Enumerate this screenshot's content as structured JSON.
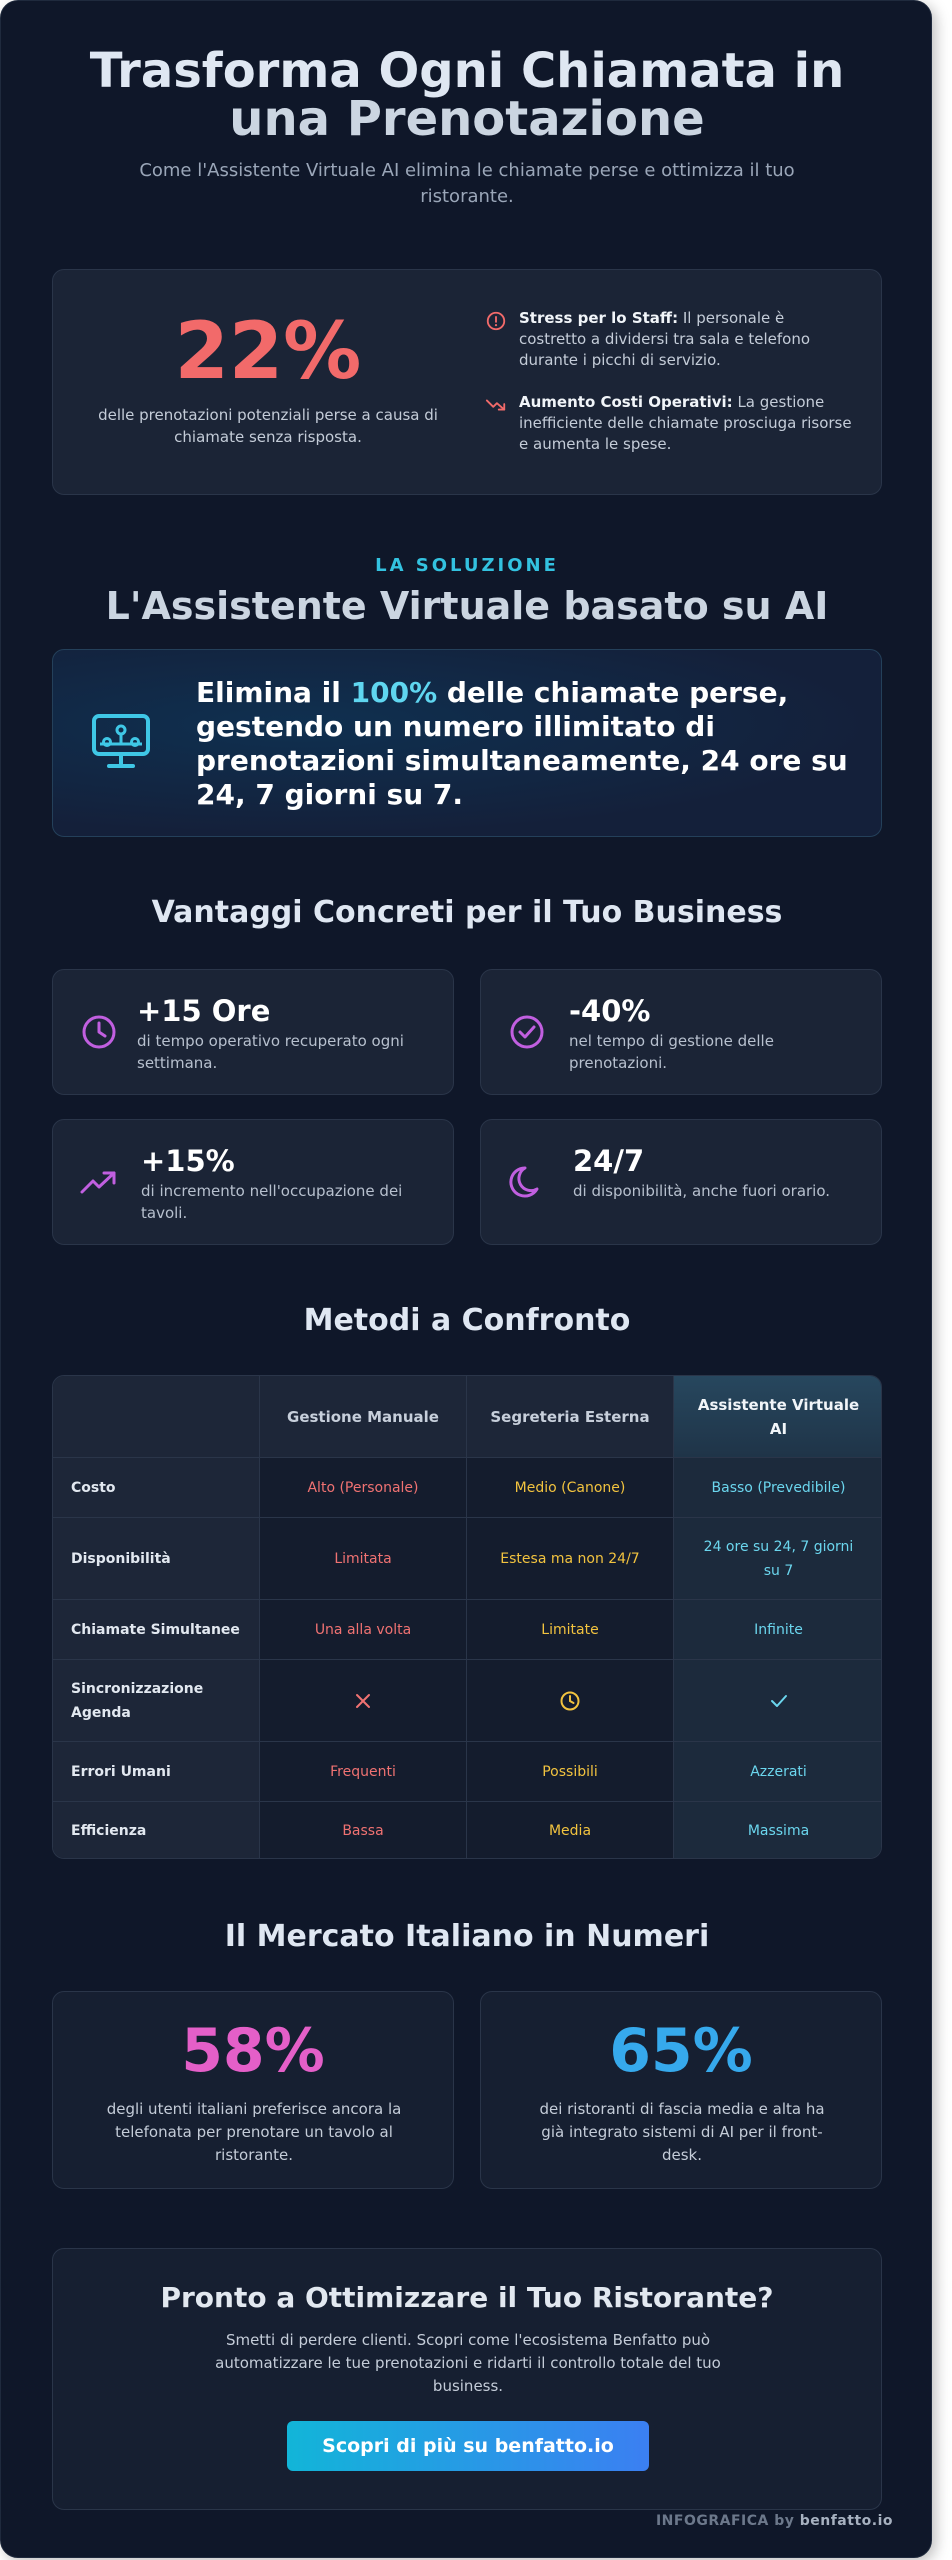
{
  "hero": {
    "title_line1": "Trasforma Ogni Chiamata in",
    "title_line2": "una Prenotazione",
    "subtitle": "Come l'Assistente Virtuale AI elimina le chiamate perse e ottimizza il tuo ristorante."
  },
  "problem": {
    "stat_value": "22%",
    "stat_caption": "delle prenotazioni potenziali perse a causa di chiamate senza risposta.",
    "issues": [
      {
        "icon": "alert-circle-icon",
        "title": "Stress per lo Staff:",
        "text": "Il personale è costretto a dividersi tra sala e telefono durante i picchi di servizio."
      },
      {
        "icon": "trending-down-icon",
        "title": "Aumento Costi Operativi:",
        "text": "La gestione inefficiente delle chiamate prosciuga risorse e aumenta le spese."
      }
    ]
  },
  "solution": {
    "eyebrow": "LA SOLUZIONE",
    "title": "L'Assistente Virtuale basato su AI",
    "icon": "monitor-network-icon",
    "text_pre": "Elimina il ",
    "text_highlight": "100%",
    "text_post": " delle chiamate perse, gestendo un numero illimitato di prenotazioni simultaneamente, 24 ore su 24, 7 giorni su 7."
  },
  "benefits": {
    "title": "Vantaggi Concreti per il Tuo Business",
    "items": [
      {
        "icon": "clock-icon",
        "value": "+15 Ore",
        "desc": "di tempo operativo recuperato ogni settimana."
      },
      {
        "icon": "check-circle-icon",
        "value": "-40%",
        "desc": "nel tempo di gestione delle prenotazioni."
      },
      {
        "icon": "trending-up-icon",
        "value": "+15%",
        "desc": "di incremento nell'occupazione dei tavoli."
      },
      {
        "icon": "moon-icon",
        "value": "24/7",
        "desc": "di disponibilità, anche fuori orario."
      }
    ]
  },
  "comparison": {
    "title": "Metodi a Confronto",
    "headers": [
      "",
      "Gestione Manuale",
      "Segreteria Esterna",
      "Assistente Virtuale AI"
    ],
    "rows": [
      {
        "label": "Costo",
        "manual": "Alto (Personale)",
        "external": "Medio (Canone)",
        "ai": "Basso (Prevedibile)"
      },
      {
        "label": "Disponibilità",
        "manual": "Limitata",
        "external": "Estesa ma non 24/7",
        "ai": "24 ore su 24, 7 giorni su 7"
      },
      {
        "label": "Chiamate Simultanee",
        "manual": "Una alla volta",
        "external": "Limitate",
        "ai": "Infinite"
      },
      {
        "label": "Sincronizzazione Agenda",
        "manual_icon": "x-icon",
        "external_icon": "clock-icon",
        "ai_icon": "check-icon"
      },
      {
        "label": "Errori Umani",
        "manual": "Frequenti",
        "external": "Possibili",
        "ai": "Azzerati"
      },
      {
        "label": "Efficienza",
        "manual": "Bassa",
        "external": "Media",
        "ai": "Massima"
      }
    ]
  },
  "market": {
    "title": "Il Mercato Italiano in Numeri",
    "items": [
      {
        "value": "58%",
        "color": "#e45fc8",
        "desc": "degli utenti italiani preferisce ancora la telefonata per prenotare un tavolo al ristorante."
      },
      {
        "value": "65%",
        "color": "#36a9ec",
        "desc": "dei ristoranti di fascia media e alta ha già integrato sistemi di AI per il front-desk."
      }
    ]
  },
  "cta": {
    "title": "Pronto a Ottimizzare il Tuo Ristorante?",
    "text": "Smetti di perdere clienti. Scopri come l'ecosistema Benfatto può automatizzare le tue prenotazioni e ridarti il controllo totale del tuo business.",
    "button": "Scopri di più su benfatto.io"
  },
  "footer": {
    "prefix": "INFOGRAFICA by ",
    "brand": "benfatto.io"
  },
  "colors": {
    "background": "#0f1729",
    "red": "#f26a6a",
    "yellow": "#f2c33f",
    "cyan": "#33c2e0",
    "purple": "#c15fe0"
  }
}
